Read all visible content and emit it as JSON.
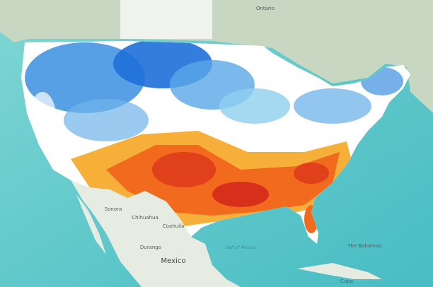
{
  "map": {
    "labels": [
      "Ontario",
      "Sonora",
      "Chihuahua",
      "Coahuila",
      "Durango",
      "Mexico",
      "Gulf of Mexico",
      "The Bahamas",
      "Cuba"
    ]
  }
}
